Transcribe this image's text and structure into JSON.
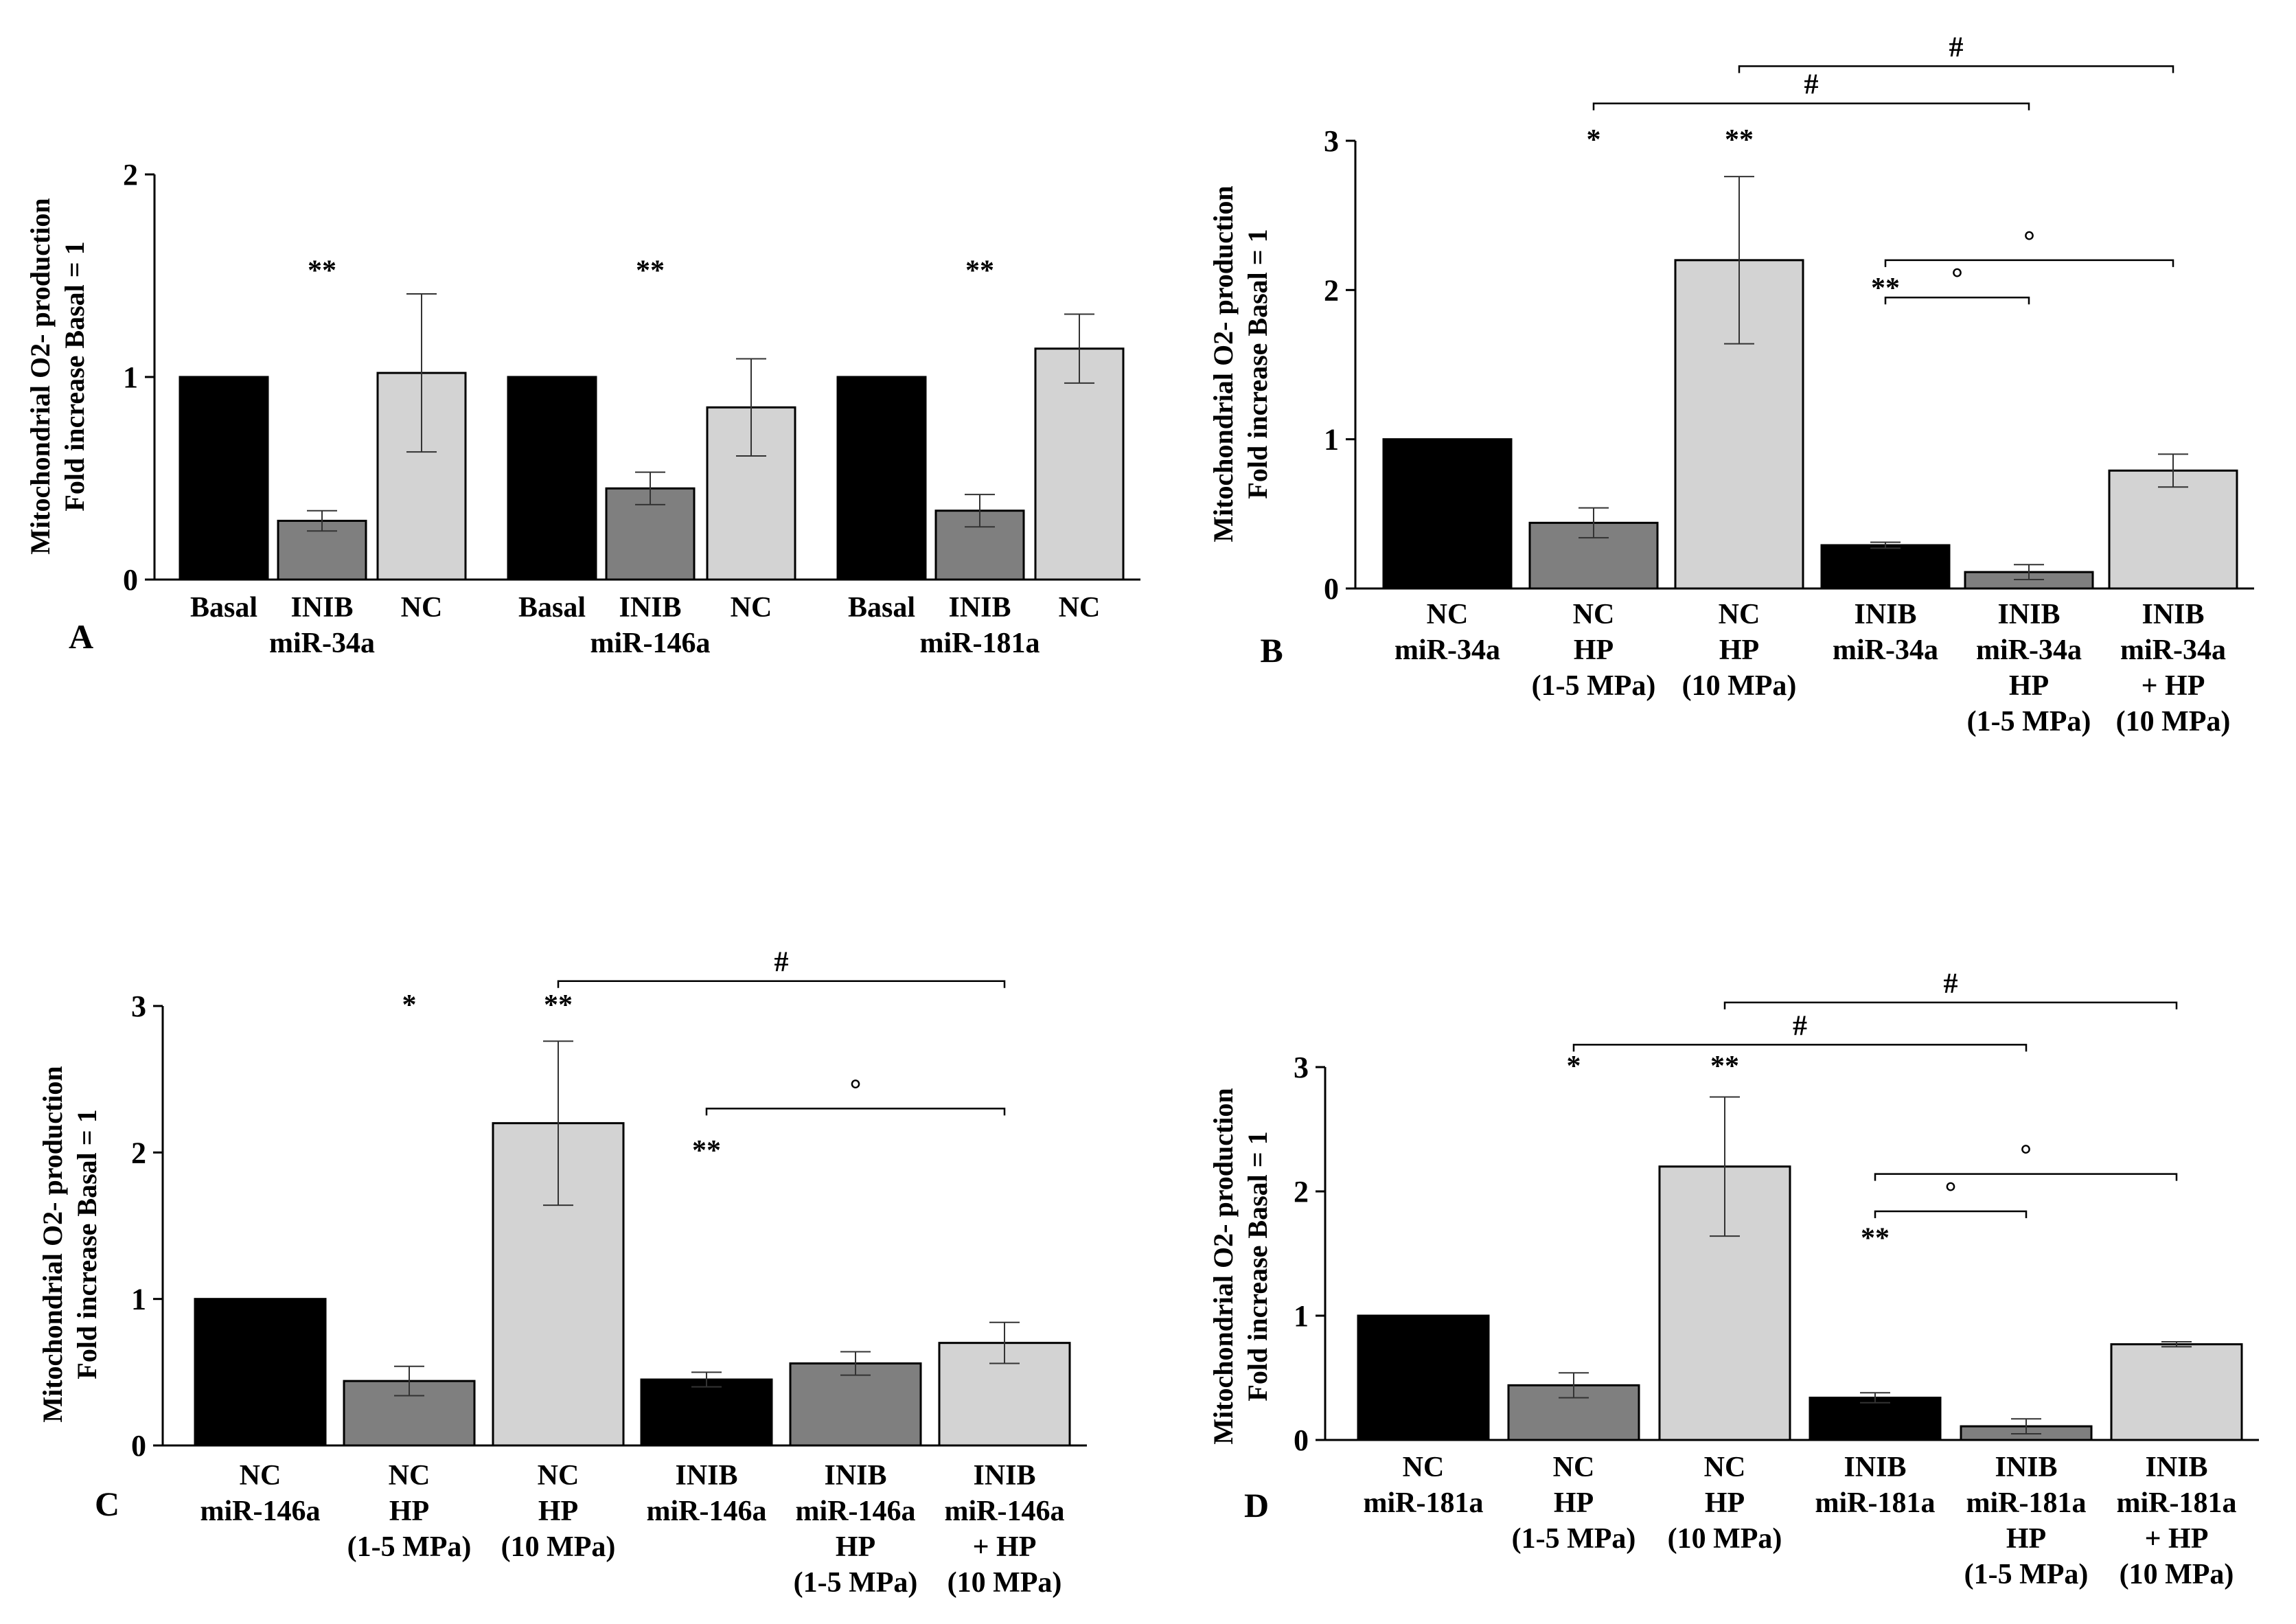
{
  "colors": {
    "black": "#000000",
    "dark_gray": "#7f7f7f",
    "light_gray": "#d3d3d3"
  },
  "chart_data": [
    {
      "panel": "A",
      "type": "bar",
      "ylabel_line1": "Mitochondrial O2- production",
      "ylabel_line2": "Fold increase Basal = 1",
      "ylim": [
        0,
        2
      ],
      "yticks": [
        "0",
        "1",
        "2"
      ],
      "bars": [
        {
          "label": [
            "Basal"
          ],
          "value": 1.0,
          "err": null,
          "color": "black",
          "sig": ""
        },
        {
          "label": [
            "INIB"
          ],
          "value": 0.29,
          "err": 0.05,
          "color": "dark_gray",
          "sig": "**"
        },
        {
          "label": [
            "NC"
          ],
          "value": 1.02,
          "err": 0.39,
          "color": "light_gray",
          "sig": ""
        },
        {
          "label": [
            "Basal"
          ],
          "value": 1.0,
          "err": null,
          "color": "black",
          "sig": ""
        },
        {
          "label": [
            "INIB"
          ],
          "value": 0.45,
          "err": 0.08,
          "color": "dark_gray",
          "sig": "**"
        },
        {
          "label": [
            "NC"
          ],
          "value": 0.85,
          "err": 0.24,
          "color": "light_gray",
          "sig": ""
        },
        {
          "label": [
            "Basal"
          ],
          "value": 1.0,
          "err": null,
          "color": "black",
          "sig": ""
        },
        {
          "label": [
            "INIB"
          ],
          "value": 0.34,
          "err": 0.08,
          "color": "dark_gray",
          "sig": "**"
        },
        {
          "label": [
            "NC"
          ],
          "value": 1.14,
          "err": 0.17,
          "color": "light_gray",
          "sig": ""
        }
      ],
      "group_labels": [
        {
          "text": "miR-34a",
          "bar": 1
        },
        {
          "text": "miR-146a",
          "bar": 4
        },
        {
          "text": "miR-181a",
          "bar": 7
        }
      ],
      "brackets": []
    },
    {
      "panel": "B",
      "type": "bar",
      "ylabel_line1": "Mitochondrial O2- production",
      "ylabel_line2": "Fold increase Basal = 1",
      "ylim": [
        0,
        3
      ],
      "yticks": [
        "0",
        "1",
        "2",
        "3"
      ],
      "bars": [
        {
          "label": [
            "NC",
            "miR-34a"
          ],
          "value": 1.0,
          "err": null,
          "color": "black",
          "sig": ""
        },
        {
          "label": [
            "NC",
            "HP",
            "(1-5 MPa)"
          ],
          "value": 0.44,
          "err": 0.1,
          "color": "dark_gray",
          "sig": "*"
        },
        {
          "label": [
            "NC",
            "HP",
            "(10 MPa)"
          ],
          "value": 2.2,
          "err": 0.56,
          "color": "light_gray",
          "sig": "**"
        },
        {
          "label": [
            "INIB",
            "miR-34a"
          ],
          "value": 0.29,
          "err": 0.02,
          "color": "black",
          "sig": "**"
        },
        {
          "label": [
            "INIB",
            "miR-34a",
            "HP",
            "(1-5 MPa)"
          ],
          "value": 0.11,
          "err": 0.05,
          "color": "dark_gray",
          "sig": ""
        },
        {
          "label": [
            "INIB",
            "miR-34a",
            "+ HP",
            "(10 MPa)"
          ],
          "value": 0.79,
          "err": 0.11,
          "color": "light_gray",
          "sig": ""
        }
      ],
      "group_labels": [],
      "brackets": [
        {
          "from": 2,
          "to": 5,
          "symbol": "#",
          "level": 3.5
        },
        {
          "from": 1,
          "to": 4,
          "symbol": "#",
          "level": 3.25
        },
        {
          "from": 3,
          "to": 5,
          "symbol": "°",
          "level": 2.2
        },
        {
          "from": 3,
          "to": 4,
          "symbol": "°",
          "level": 1.95
        }
      ]
    },
    {
      "panel": "C",
      "type": "bar",
      "ylabel_line1": "Mitochondrial O2- production",
      "ylabel_line2": "Fold increase Basal = 1",
      "ylim": [
        0,
        3
      ],
      "yticks": [
        "0",
        "1",
        "2",
        "3"
      ],
      "bars": [
        {
          "label": [
            "NC",
            "miR-146a"
          ],
          "value": 1.0,
          "err": null,
          "color": "black",
          "sig": ""
        },
        {
          "label": [
            "NC",
            "HP",
            "(1-5 MPa)"
          ],
          "value": 0.44,
          "err": 0.1,
          "color": "dark_gray",
          "sig": "*"
        },
        {
          "label": [
            "NC",
            "HP",
            "(10 MPa)"
          ],
          "value": 2.2,
          "err": 0.56,
          "color": "light_gray",
          "sig": "**"
        },
        {
          "label": [
            "INIB",
            "miR-146a"
          ],
          "value": 0.45,
          "err": 0.05,
          "color": "black",
          "sig": "**"
        },
        {
          "label": [
            "INIB",
            "miR-146a",
            "HP",
            "(1-5 MPa)"
          ],
          "value": 0.56,
          "err": 0.08,
          "color": "dark_gray",
          "sig": ""
        },
        {
          "label": [
            "INIB",
            "miR-146a",
            "+ HP",
            "(10 MPa)"
          ],
          "value": 0.7,
          "err": 0.14,
          "color": "light_gray",
          "sig": ""
        }
      ],
      "group_labels": [],
      "brackets": [
        {
          "from": 2,
          "to": 5,
          "symbol": "#",
          "level": 3.17
        },
        {
          "from": 3,
          "to": 5,
          "symbol": "°",
          "level": 2.3
        }
      ]
    },
    {
      "panel": "D",
      "type": "bar",
      "ylabel_line1": "Mitochondrial O2- production",
      "ylabel_line2": "Fold increase Basal = 1",
      "ylim": [
        0,
        3
      ],
      "yticks": [
        "0",
        "1",
        "2",
        "3"
      ],
      "bars": [
        {
          "label": [
            "NC",
            "miR-181a"
          ],
          "value": 1.0,
          "err": null,
          "color": "black",
          "sig": ""
        },
        {
          "label": [
            "NC",
            "HP",
            "(1-5 MPa)"
          ],
          "value": 0.44,
          "err": 0.1,
          "color": "dark_gray",
          "sig": "*"
        },
        {
          "label": [
            "NC",
            "HP",
            "(10 MPa)"
          ],
          "value": 2.2,
          "err": 0.56,
          "color": "light_gray",
          "sig": "**"
        },
        {
          "label": [
            "INIB",
            "miR-181a"
          ],
          "value": 0.34,
          "err": 0.04,
          "color": "black",
          "sig": "**"
        },
        {
          "label": [
            "INIB",
            "miR-181a",
            "HP",
            "(1-5 MPa)"
          ],
          "value": 0.11,
          "err": 0.06,
          "color": "dark_gray",
          "sig": ""
        },
        {
          "label": [
            "INIB",
            "miR-181a",
            "+ HP",
            "(10 MPa)"
          ],
          "value": 0.77,
          "err": 0.02,
          "color": "light_gray",
          "sig": ""
        }
      ],
      "group_labels": [],
      "brackets": [
        {
          "from": 2,
          "to": 5,
          "symbol": "#",
          "level": 3.52
        },
        {
          "from": 1,
          "to": 4,
          "symbol": "#",
          "level": 3.18
        },
        {
          "from": 3,
          "to": 5,
          "symbol": "°",
          "level": 2.14
        },
        {
          "from": 3,
          "to": 4,
          "symbol": "°",
          "level": 1.84
        }
      ]
    }
  ]
}
